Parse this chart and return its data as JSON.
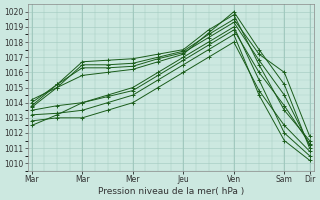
{
  "bg_color": "#cce8e0",
  "line_color": "#1a5c1a",
  "grid_color": "#a0c8be",
  "xlabel": "Pression niveau de la mer( hPa )",
  "ylim": [
    1009.5,
    1020.5
  ],
  "yticks": [
    1010,
    1011,
    1012,
    1013,
    1014,
    1015,
    1016,
    1017,
    1018,
    1019,
    1020
  ],
  "xtick_positions": [
    0,
    24,
    48,
    72,
    96,
    120,
    132
  ],
  "xtick_labels": [
    "Mar",
    "Mar",
    "Mer",
    "Jeu",
    "Ven",
    "Sam",
    "Dir"
  ],
  "xlim": [
    -2,
    134
  ],
  "series_x": [
    [
      0,
      12,
      24,
      36,
      48,
      60,
      72,
      84,
      96,
      108,
      120,
      132
    ],
    [
      0,
      12,
      24,
      36,
      48,
      60,
      72,
      84,
      96,
      108,
      120,
      132
    ],
    [
      0,
      12,
      24,
      36,
      48,
      60,
      72,
      84,
      96,
      108,
      120,
      132
    ],
    [
      0,
      12,
      24,
      36,
      48,
      60,
      72,
      84,
      96,
      108,
      120,
      132
    ],
    [
      0,
      12,
      24,
      36,
      48,
      60,
      72,
      84,
      96,
      108,
      120,
      132
    ],
    [
      0,
      12,
      24,
      36,
      48,
      60,
      72,
      84,
      96,
      108,
      120,
      132
    ],
    [
      0,
      12,
      24,
      36,
      48,
      60,
      72,
      84,
      96,
      108,
      120,
      132
    ],
    [
      0,
      12,
      24,
      36,
      48,
      60,
      72,
      84,
      96,
      108,
      120,
      132
    ]
  ],
  "series_y": [
    [
      1013.8,
      1015.2,
      1016.7,
      1016.8,
      1016.9,
      1017.2,
      1017.5,
      1018.8,
      1019.8,
      1016.5,
      1013.5,
      1011.5
    ],
    [
      1013.7,
      1015.0,
      1016.5,
      1016.5,
      1016.6,
      1017.0,
      1017.4,
      1018.5,
      1019.5,
      1017.2,
      1016.0,
      1011.8
    ],
    [
      1014.0,
      1015.2,
      1016.3,
      1016.3,
      1016.4,
      1016.9,
      1017.3,
      1018.3,
      1019.3,
      1016.8,
      1014.5,
      1011.2
    ],
    [
      1014.2,
      1015.0,
      1015.8,
      1016.0,
      1016.2,
      1016.7,
      1017.2,
      1018.6,
      1020.0,
      1017.5,
      1015.2,
      1011.0
    ],
    [
      1013.5,
      1013.8,
      1014.0,
      1014.5,
      1015.0,
      1016.0,
      1017.0,
      1018.0,
      1019.0,
      1015.5,
      1012.0,
      1010.5
    ],
    [
      1013.2,
      1013.3,
      1013.5,
      1014.0,
      1014.5,
      1015.5,
      1016.5,
      1017.5,
      1018.5,
      1014.5,
      1011.5,
      1010.2
    ],
    [
      1012.8,
      1013.0,
      1013.0,
      1013.5,
      1014.0,
      1015.0,
      1016.0,
      1017.0,
      1018.0,
      1014.8,
      1012.5,
      1010.8
    ],
    [
      1012.5,
      1013.2,
      1014.0,
      1014.4,
      1014.8,
      1015.8,
      1016.8,
      1017.8,
      1018.8,
      1016.0,
      1013.8,
      1011.3
    ]
  ]
}
